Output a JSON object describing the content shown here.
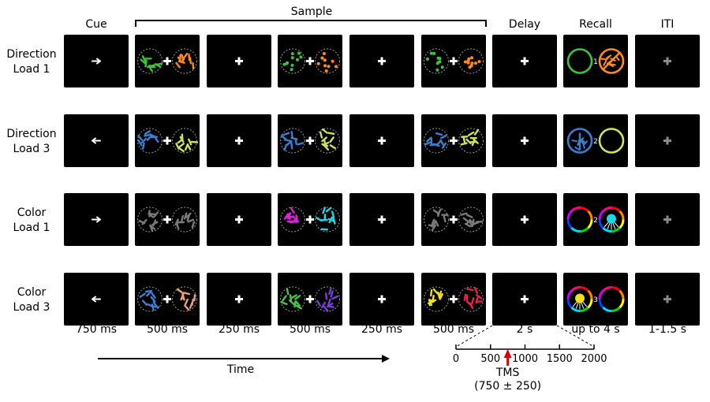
{
  "header": {
    "columns": [
      "Cue",
      "Delay",
      "Recall",
      "ITI"
    ],
    "sample_label": "Sample"
  },
  "rows": [
    {
      "line1": "Direction",
      "line2": "Load 1",
      "cue": "right",
      "set": "mono",
      "samples": [
        [
          "#3cc43c",
          "#ff8c1a"
        ],
        [
          "#3cc43c",
          "#ff8c1a"
        ],
        [
          "#3cc43c",
          "#ff8c1a"
        ]
      ],
      "s2": "dots",
      "recall": {
        "type": "direction",
        "index": "1",
        "probe": "right",
        "left": "#3cc43c",
        "right": "#ff8c1a"
      }
    },
    {
      "line1": "Direction",
      "line2": "Load 3",
      "cue": "left",
      "set": "mono",
      "samples": [
        [
          "#3a7fd1",
          "#cde35c"
        ],
        [
          "#3a7fd1",
          "#cde35c"
        ],
        [
          "#3a7fd1",
          "#cde35c"
        ]
      ],
      "s2": "arrows",
      "recall": {
        "type": "direction",
        "index": "2",
        "probe": "left",
        "left": "#3a7fd1",
        "right": "#cde35c"
      }
    },
    {
      "line1": "Color",
      "line2": "Load 1",
      "cue": "right",
      "set": "color",
      "samples": [
        [
          "#7a7a7a",
          "#7a7a7a"
        ],
        [
          "#e020e0",
          "#22d6e6"
        ],
        [
          "#7a7a7a",
          "#7a7a7a"
        ]
      ],
      "s2": "arrows",
      "recall": {
        "type": "color",
        "index": "2",
        "probe": "right",
        "dot": "#22d6e6"
      }
    },
    {
      "line1": "Color",
      "line2": "Load 3",
      "cue": "left",
      "set": "color",
      "samples": [
        [
          "#3a7fd1",
          "#e8a07a"
        ],
        [
          "#44c944",
          "#7a3fd6"
        ],
        [
          "#f0e020",
          "#e8204a"
        ]
      ],
      "s2": "arrows",
      "recall": {
        "type": "color",
        "index": "3",
        "probe": "left",
        "dot": "#f0e020"
      }
    }
  ],
  "durations": [
    "750 ms",
    "500 ms",
    "250 ms",
    "500 ms",
    "250 ms",
    "500 ms",
    "2 s",
    "up to 4 s",
    "1-1.5 s"
  ],
  "time_label": "Time",
  "timeline": {
    "ticks": [
      "0",
      "500",
      "1000",
      "1500",
      "2000"
    ],
    "tms_label": "TMS",
    "tms_window": "(750 ± 250)",
    "tms_value_ms": 750
  },
  "colors": {
    "screen": "#000000",
    "fixation": "#ffffff",
    "iti_fixation": "#8a8a8a",
    "tms_arrow": "#e00000",
    "aperture": "#9a9a9a"
  }
}
